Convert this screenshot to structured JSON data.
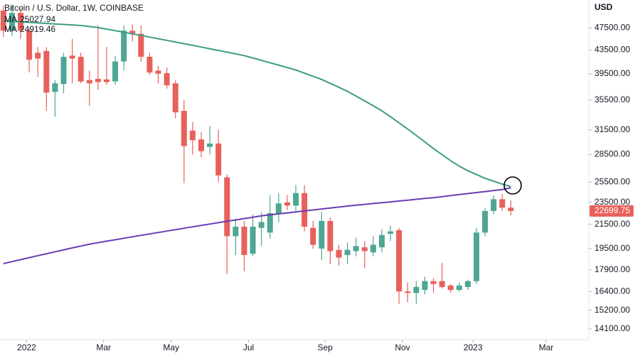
{
  "chart_data": {
    "type": "candlestick",
    "title": "Bitcoin / U.S. Dollar, 1W, COINBASE",
    "y_axis_label": "USD",
    "log_scale": true,
    "up_color": "#4ea693",
    "down_color": "#e8605b",
    "open": [
      51000,
      47000,
      50500,
      47000,
      43000,
      43300,
      36700,
      37900,
      42500,
      42300,
      38500,
      38700,
      38600,
      38300,
      41500,
      47000,
      46400,
      42300,
      40000,
      39600,
      38000,
      34000,
      31400,
      30300,
      29400,
      29800,
      26000,
      20500,
      21300,
      19100,
      21200,
      20800,
      22400,
      23500,
      23200,
      24400,
      21200,
      19500,
      21800,
      19400,
      19000,
      19300,
      19600,
      19200,
      19600,
      20700,
      21000,
      16400,
      16300,
      16500,
      17100,
      17100,
      16800,
      16500,
      16700,
      17100,
      20800,
      22700,
      23800,
      23000
    ],
    "high": [
      52000,
      52000,
      51500,
      47500,
      44000,
      44000,
      38500,
      43000,
      45500,
      43000,
      40000,
      48000,
      44000,
      42400,
      48000,
      48200,
      48000,
      43000,
      40800,
      40500,
      38500,
      35500,
      32500,
      31200,
      32000,
      31500,
      26300,
      22000,
      21800,
      22400,
      22600,
      24200,
      24400,
      24200,
      25200,
      25200,
      21800,
      22600,
      22100,
      19800,
      20000,
      20400,
      20100,
      20500,
      21100,
      21400,
      21200,
      17000,
      17100,
      17400,
      17300,
      18400,
      16900,
      17000,
      17200,
      21200,
      23000,
      24200,
      24300,
      23700
    ],
    "low": [
      45800,
      46000,
      45500,
      39700,
      39000,
      34000,
      33200,
      36500,
      38000,
      38000,
      34700,
      37000,
      37800,
      37800,
      40000,
      45000,
      41500,
      39300,
      38000,
      37200,
      33000,
      25400,
      28500,
      28200,
      28500,
      25500,
      17600,
      19000,
      17800,
      18900,
      19700,
      20300,
      21700,
      22800,
      22700,
      20900,
      19500,
      18600,
      18300,
      18200,
      18300,
      18900,
      18000,
      18900,
      19200,
      20100,
      15600,
      15700,
      15600,
      16200,
      16300,
      16600,
      16300,
      16400,
      16500,
      16900,
      20500,
      22400,
      22700,
      22300
    ],
    "close": [
      47000,
      50500,
      47000,
      41800,
      42000,
      36600,
      38000,
      42300,
      42000,
      38300,
      38000,
      38200,
      38200,
      41500,
      47000,
      46500,
      42300,
      39700,
      39500,
      37700,
      33800,
      29500,
      30200,
      28900,
      29800,
      26200,
      20500,
      21300,
      19000,
      21300,
      21700,
      22500,
      23400,
      23200,
      24400,
      21300,
      19800,
      21800,
      19300,
      18800,
      19400,
      19700,
      19300,
      19800,
      20600,
      20900,
      16400,
      16300,
      16700,
      17100,
      16900,
      16700,
      16500,
      16800,
      17100,
      20800,
      22700,
      23800,
      23000,
      22699.75
    ],
    "series": [
      {
        "name": "MA",
        "color": "#3d9c80",
        "values": [
          48900,
          48800,
          48700,
          48600,
          48500,
          48400,
          48300,
          48200,
          48100,
          48000,
          47800,
          47600,
          47300,
          47000,
          46700,
          46400,
          46100,
          45800,
          45500,
          45200,
          44900,
          44600,
          44300,
          44000,
          43700,
          43400,
          43100,
          42800,
          42500,
          42100,
          41700,
          41300,
          40900,
          40500,
          40100,
          39600,
          39100,
          38600,
          38000,
          37400,
          36800,
          36100,
          35400,
          34700,
          34000,
          33200,
          32400,
          31600,
          30800,
          30000,
          29200,
          28500,
          27800,
          27200,
          26700,
          26300,
          25900,
          25600,
          25300,
          25027.94
        ]
      },
      {
        "name": "MA",
        "color": "#6b3cb4",
        "values": [
          18350,
          18500,
          18650,
          18800,
          18950,
          19100,
          19250,
          19400,
          19550,
          19700,
          19850,
          19970,
          20090,
          20210,
          20330,
          20450,
          20570,
          20690,
          20810,
          20930,
          21050,
          21170,
          21290,
          21410,
          21530,
          21650,
          21770,
          21890,
          22010,
          22130,
          22250,
          22340,
          22430,
          22520,
          22610,
          22700,
          22790,
          22880,
          22970,
          23060,
          23150,
          23230,
          23310,
          23390,
          23470,
          23550,
          23630,
          23710,
          23790,
          23870,
          23950,
          24050,
          24150,
          24250,
          24350,
          24450,
          24550,
          24650,
          24750,
          24919.46
        ]
      }
    ],
    "ylim": [
      13500,
      53200
    ],
    "yticks": [
      {
        "value": 47500,
        "label": "47500.00"
      },
      {
        "value": 43500,
        "label": "43500.00"
      },
      {
        "value": 39500,
        "label": "39500.00"
      },
      {
        "value": 35500,
        "label": "35500.00"
      },
      {
        "value": 31500,
        "label": "31500.00"
      },
      {
        "value": 28500,
        "label": "28500.00"
      },
      {
        "value": 25500,
        "label": "25500.00"
      },
      {
        "value": 23500,
        "label": "23500.00"
      },
      {
        "value": 21500,
        "label": "21500.00"
      },
      {
        "value": 19500,
        "label": "19500.00"
      },
      {
        "value": 17900,
        "label": "17900.00"
      },
      {
        "value": 16400,
        "label": "16400.00"
      },
      {
        "value": 15200,
        "label": "15200.00"
      },
      {
        "value": 14100,
        "label": "14100.00"
      }
    ],
    "xlim": [
      -0.4,
      67.9
    ],
    "xticks": [
      {
        "value": 2.7,
        "label": "2022"
      },
      {
        "value": 11.65,
        "label": "Mar"
      },
      {
        "value": 19.5,
        "label": "May"
      },
      {
        "value": 28.5,
        "label": "Jul"
      },
      {
        "value": 37.4,
        "label": "Sep"
      },
      {
        "value": 46.4,
        "label": "Nov"
      },
      {
        "value": 54.6,
        "label": "2023"
      },
      {
        "value": 63.1,
        "label": "Mar"
      }
    ]
  }
}
